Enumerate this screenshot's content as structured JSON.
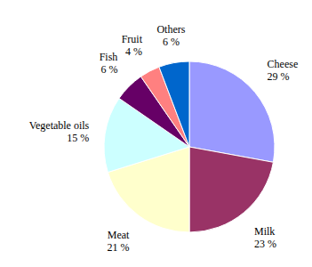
{
  "chart_data": {
    "type": "pie",
    "categories": [
      "Cheese",
      "Milk",
      "Meat",
      "Vegetable oils",
      "Fish",
      "Fruit",
      "Others"
    ],
    "values": [
      29,
      23,
      21,
      15,
      6,
      4,
      6
    ],
    "value_labels": [
      "29 %",
      "23 %",
      "21 %",
      "15 %",
      "6 %",
      "4 %",
      "6 %"
    ],
    "colors": [
      "#9999ff",
      "#993366",
      "#ffffcc",
      "#ccffff",
      "#660066",
      "#ff8080",
      "#0066cc"
    ],
    "data_labels": true
  }
}
